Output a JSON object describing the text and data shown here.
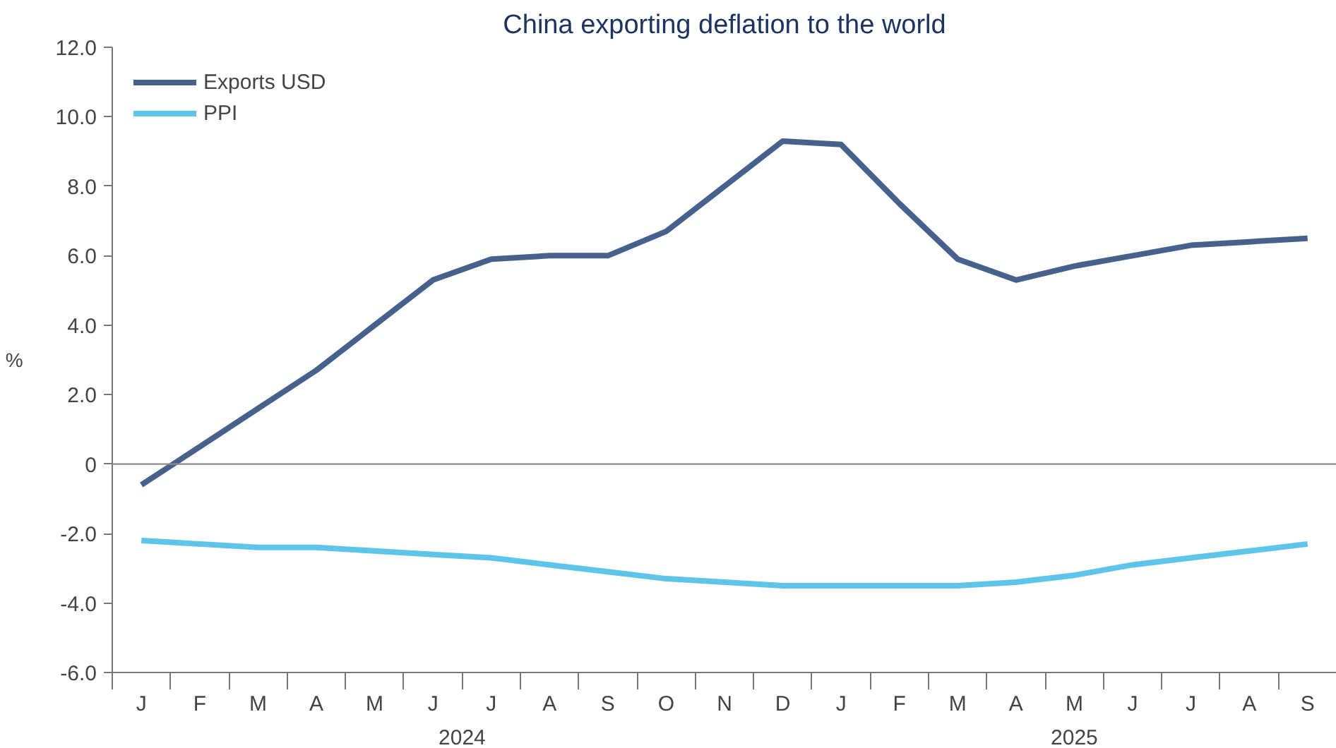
{
  "chart_data": {
    "type": "line",
    "title": "China exporting deflation to the world",
    "ylabel": "%",
    "categories": [
      "J",
      "F",
      "M",
      "A",
      "M",
      "J",
      "J",
      "A",
      "S",
      "O",
      "N",
      "D",
      "J",
      "F",
      "M",
      "A",
      "M",
      "J",
      "J",
      "A",
      "S"
    ],
    "series": [
      {
        "name": "Exports USD",
        "color": "#46618c",
        "values": [
          -0.6,
          0.5,
          1.6,
          2.7,
          4.0,
          5.3,
          5.9,
          6.0,
          6.0,
          6.7,
          8.0,
          9.3,
          9.2,
          7.5,
          5.9,
          5.3,
          5.7,
          6.0,
          6.3,
          6.4,
          6.5
        ]
      },
      {
        "name": "PPI",
        "color": "#5ec4ea",
        "values": [
          -2.2,
          -2.3,
          -2.4,
          -2.4,
          -2.5,
          -2.6,
          -2.7,
          -2.9,
          -3.1,
          -3.3,
          -3.4,
          -3.5,
          -3.5,
          -3.5,
          -3.5,
          -3.4,
          -3.2,
          -2.9,
          -2.7,
          -2.5,
          -2.3
        ]
      }
    ],
    "annotations": [
      "2024",
      "2025"
    ],
    "ylim": [
      -6,
      12
    ],
    "yticks": [
      {
        "value": -6,
        "label": "-6.0"
      },
      {
        "value": -4,
        "label": "-4.0"
      },
      {
        "value": -2,
        "label": "-2.0"
      },
      0,
      {
        "value": 2,
        "label": "2.0"
      },
      {
        "value": 4,
        "label": "4.0"
      },
      {
        "value": 6,
        "label": "6.0"
      },
      {
        "value": 8,
        "label": "8.0"
      },
      {
        "value": 10,
        "label": "10.0"
      },
      {
        "value": 12,
        "label": "12.0"
      }
    ],
    "ref_lines": [
      {
        "axis": "y",
        "value": 0,
        "color": "#8c8c8c"
      }
    ],
    "grid": false,
    "legend": "top left",
    "line_style": "solid",
    "marker": "none"
  }
}
